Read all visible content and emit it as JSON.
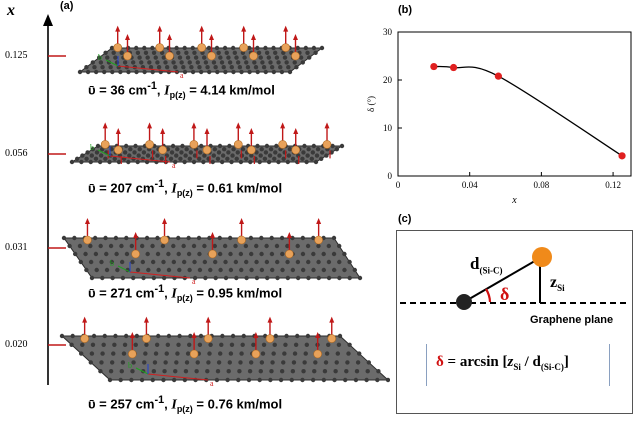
{
  "panel_a": {
    "label": "(a)",
    "axis_label": "x",
    "rows": [
      {
        "x_tick": "0.125",
        "freq": "ῡ = 36 cm",
        "freq_sup": "-1",
        "intensity_sym": "I",
        "intensity_sub": "p(z)",
        "intensity_val": " = 4.14 km/mol"
      },
      {
        "x_tick": "0.056",
        "freq": "ῡ = 207 cm",
        "freq_sup": "-1",
        "intensity_sym": "I",
        "intensity_sub": "p(z)",
        "intensity_val": " = 0.61 km/mol"
      },
      {
        "x_tick": "0.031",
        "freq": "ῡ = 271 cm",
        "freq_sup": "-1",
        "intensity_sym": "I",
        "intensity_sub": "p(z)",
        "intensity_val": " = 0.95 km/mol"
      },
      {
        "x_tick": "0.020",
        "freq": "ῡ = 257 cm",
        "freq_sup": "-1",
        "intensity_sym": "I",
        "intensity_sub": "p(z)",
        "intensity_val": " = 0.76 km/mol"
      }
    ],
    "axis_letters": {
      "a": "a",
      "b": "b"
    },
    "colors": {
      "carbon": "#3a3a3a",
      "silicon": "#e8a25a",
      "arrow": "#c01818",
      "tick": "#c01818"
    }
  },
  "panel_b": {
    "label": "(b)"
  },
  "chart_data": {
    "type": "line",
    "title": "",
    "xlabel": "x",
    "ylabel": "δ (°)",
    "xlim": [
      0,
      0.13
    ],
    "ylim": [
      0,
      30
    ],
    "x_ticks": [
      "0",
      "0.04",
      "0.08",
      "0.12"
    ],
    "y_ticks": [
      "0",
      "10",
      "20",
      "30"
    ],
    "series": [
      {
        "x": [
          0.02,
          0.031,
          0.056,
          0.125
        ],
        "y": [
          22.8,
          22.6,
          20.8,
          4.2
        ],
        "marker_color": "#e02020",
        "line_color": "#000000"
      }
    ],
    "grid": false
  },
  "panel_c": {
    "label": "(c)",
    "bond_label": "d",
    "bond_sub": "(Si-C)",
    "z_label": "z",
    "z_sub": "Si",
    "angle_label": "δ",
    "plane_label": "Graphene plane",
    "formula": {
      "delta": "δ",
      "eq": " = arcsin [",
      "z": "z",
      "z_sub": "Si",
      "slash": " / d",
      "d_sub": "(Si-C)",
      "close": "]"
    },
    "colors": {
      "silicon": "#f08a1a",
      "carbon": "#222222",
      "angle": "#d01010"
    }
  }
}
